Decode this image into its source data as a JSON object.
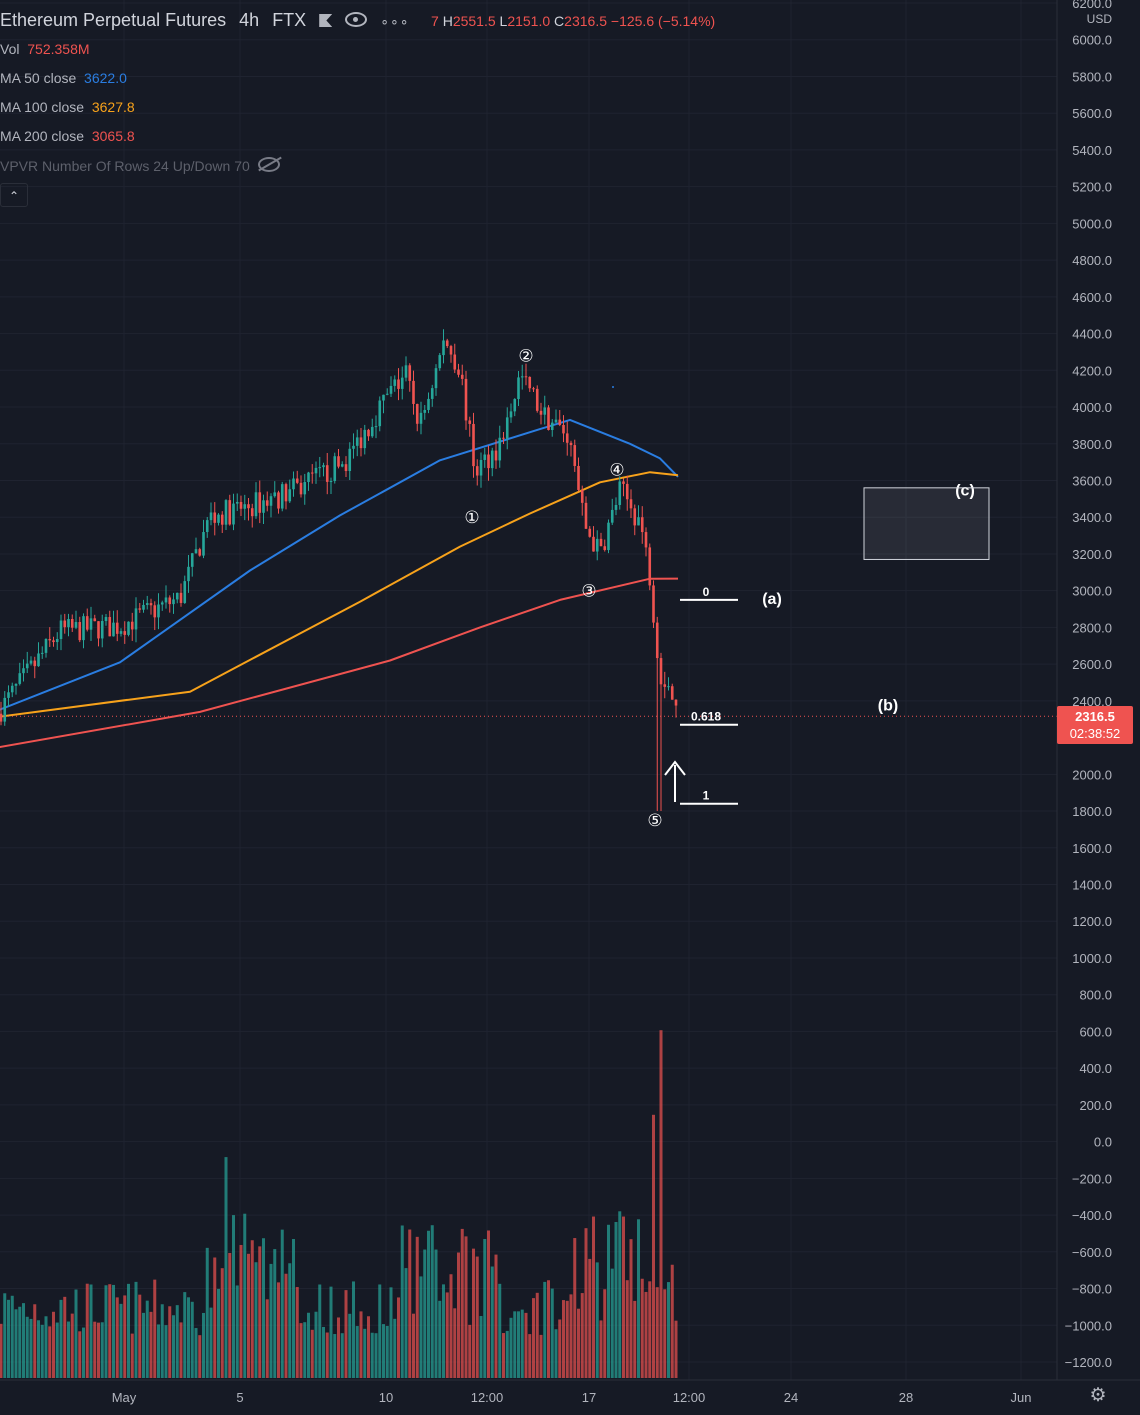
{
  "header": {
    "symbol": "Ethereum Perpetual Futures",
    "interval": "4h",
    "exchange": "FTX",
    "more_label": "∘∘∘",
    "ohlc": {
      "o_tail": "7",
      "h_label": "H",
      "h": "2551.5",
      "l_label": "L",
      "l": "2151.0",
      "c_label": "C",
      "c": "2316.5",
      "change": "−125.6 (−5.14%)"
    }
  },
  "indicators": [
    {
      "label": "Vol",
      "value": "752.358M",
      "color": "#ef5350"
    },
    {
      "label": "MA 50 close",
      "value": "3622.0",
      "color": "#2a7de1"
    },
    {
      "label": "MA 100 close",
      "value": "3627.8",
      "color": "#f7a21b"
    },
    {
      "label": "MA 200 close",
      "value": "3065.8",
      "color": "#ef5350"
    },
    {
      "label": "VPVR Number Of Rows 24 Up/Down 70",
      "value": "",
      "color": "#b2b5be"
    }
  ],
  "last_price": {
    "price": "2316.5",
    "countdown": "02:38:52"
  },
  "chart_data": {
    "type": "candlestick",
    "currency": "USD",
    "price_axis": {
      "min": -1200,
      "max": 6200,
      "ticks": [
        6200,
        6000,
        5800,
        5600,
        5400,
        5200,
        5000,
        4800,
        4600,
        4400,
        4200,
        4000,
        3800,
        3600,
        3400,
        3200,
        3000,
        2800,
        2600,
        2400,
        2000,
        1800,
        1600,
        1400,
        1200,
        1000,
        800,
        600,
        400,
        200,
        0,
        -200,
        -400,
        -600,
        -800,
        -1000,
        -1200
      ]
    },
    "time_axis": {
      "ticks": [
        "May",
        "5",
        "10",
        "12:00",
        "17",
        "12:00",
        "24",
        "28",
        "Jun"
      ]
    },
    "key_prices": [
      {
        "label": "start",
        "price": 2350
      },
      {
        "label": "peak",
        "price": 4372
      },
      {
        "label": "wave2",
        "price": 4170
      },
      {
        "label": "wave3",
        "price": 3100
      },
      {
        "label": "wave4",
        "price": 3570
      },
      {
        "label": "low",
        "price": 1800
      },
      {
        "label": "last",
        "price": 2316.5
      }
    ],
    "moving_averages": [
      {
        "name": "MA 50",
        "color": "#2a7de1",
        "points": [
          [
            -20,
            2310
          ],
          [
            120,
            2610
          ],
          [
            250,
            3110
          ],
          [
            340,
            3410
          ],
          [
            440,
            3710
          ],
          [
            540,
            3880
          ],
          [
            570,
            3930
          ],
          [
            630,
            3800
          ],
          [
            660,
            3720
          ],
          [
            678,
            3620
          ]
        ]
      },
      {
        "name": "MA 100",
        "color": "#f7a21b",
        "points": [
          [
            -20,
            2300
          ],
          [
            190,
            2450
          ],
          [
            360,
            2940
          ],
          [
            460,
            3240
          ],
          [
            530,
            3420
          ],
          [
            600,
            3590
          ],
          [
            650,
            3645
          ],
          [
            678,
            3628
          ]
        ]
      },
      {
        "name": "MA 200",
        "color": "#ef5350",
        "points": [
          [
            -20,
            2130
          ],
          [
            200,
            2340
          ],
          [
            390,
            2620
          ],
          [
            480,
            2800
          ],
          [
            560,
            2950
          ],
          [
            650,
            3065
          ],
          [
            678,
            3066
          ]
        ]
      }
    ],
    "fib_levels": [
      {
        "label": "0",
        "price": 2950
      },
      {
        "label": "0.618",
        "price": 2270
      },
      {
        "label": "1",
        "price": 1840
      }
    ],
    "wave_labels": [
      {
        "text": "①",
        "price": 3400
      },
      {
        "text": "②",
        "price": 4280
      },
      {
        "text": "③",
        "price": 3000
      },
      {
        "text": "④",
        "price": 3660
      },
      {
        "text": "⑤",
        "price": 1750
      }
    ],
    "correction_labels": [
      {
        "text": "(a)",
        "price": 2960
      },
      {
        "text": "(b)",
        "price": 2380
      },
      {
        "text": "(c)",
        "price": 3550
      }
    ],
    "target_box": {
      "price_top": 3560,
      "price_bottom": 3170
    }
  }
}
